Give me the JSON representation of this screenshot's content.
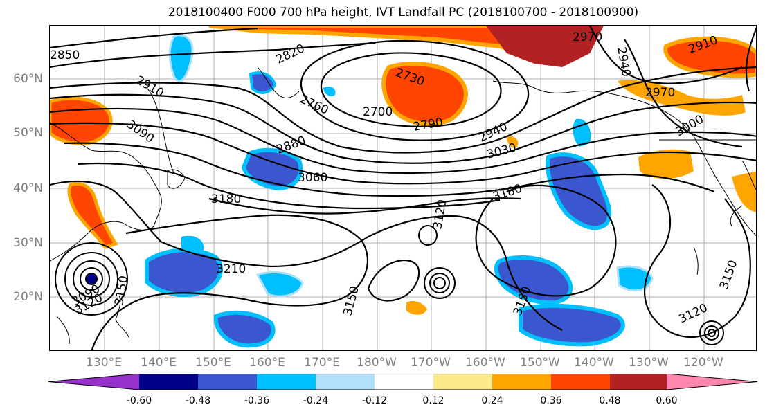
{
  "title": "2018100400 F000 700 hPa height, IVT Landfall PC (2018100700 - 2018100900)",
  "lat_labels": [
    "60°N",
    "50°N",
    "40°N",
    "30°N",
    "20°N"
  ],
  "lon_labels": [
    "130°E",
    "140°E",
    "150°E",
    "160°E",
    "170°E",
    "180°W",
    "170°W",
    "160°W",
    "150°W",
    "140°W",
    "130°W",
    "120°W"
  ],
  "contour_labels": [
    "2850",
    "2820",
    "2730",
    "2970",
    "2940",
    "2910",
    "2910",
    "2760",
    "2700",
    "2790",
    "2970",
    "3000",
    "3090",
    "2880",
    "2940",
    "3030",
    "3060",
    "3180",
    "3180",
    "3120",
    "3210",
    "3150",
    "3150",
    "3090",
    "3120",
    "3150",
    "3150",
    "3120"
  ],
  "colorbar": {
    "colors": [
      "#9932cc",
      "#00008b",
      "#3a57cf",
      "#00bfff",
      "#b0e0fb",
      "#ffffff",
      "#ffffff",
      "#fde98b",
      "#ffa500",
      "#ff4500",
      "#b22222",
      "#ff86ad"
    ],
    "tick_labels": [
      "-0.60",
      "-0.48",
      "-0.36",
      "-0.24",
      "-0.12",
      "0.12",
      "0.24",
      "0.36",
      "0.48",
      "0.60"
    ]
  }
}
